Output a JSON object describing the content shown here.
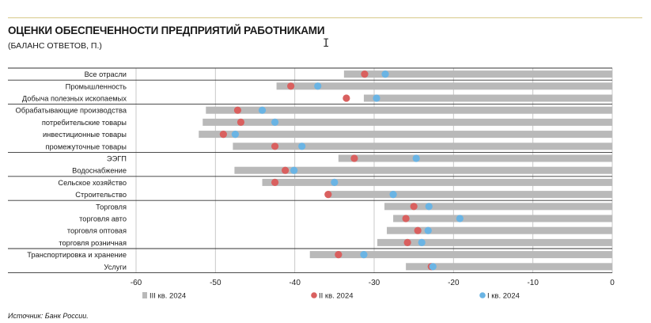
{
  "header": {
    "title": "ОЦЕНКИ ОБЕСПЕЧЕННОСТИ ПРЕДПРИЯТИЙ РАБОТНИКАМИ",
    "subtitle": "(БАЛАНС ОТВЕТОВ, П.)"
  },
  "source": "Источник: Банк России.",
  "colors": {
    "bar": "#b9b9b9",
    "q2": "#d9605f",
    "q1": "#6ab4e4",
    "grid": "#c8c8c8",
    "rule": "#333333"
  },
  "chart_data": {
    "type": "bar",
    "orientation": "horizontal",
    "categories": [
      "Все отрасли",
      "Промышленность",
      "Добыча полезных ископаемых",
      "Обрабатывающие производства",
      "потребительские товары",
      "инвестиционные товары",
      "промежуточные товары",
      "ЭЭГП",
      "Водоснабжение",
      "Сельское хозяйство",
      "Строительство",
      "Торговля",
      "торговля авто",
      "торговля оптовая",
      "торговля розничная",
      "Транспортировка и хранение",
      "Услуги"
    ],
    "groups": [
      [
        0
      ],
      [
        1,
        2
      ],
      [
        3,
        4,
        5,
        6
      ],
      [
        7,
        8
      ],
      [
        9,
        10
      ],
      [
        11,
        12,
        13,
        14
      ],
      [
        15,
        16
      ]
    ],
    "series": [
      {
        "name": "III кв. 2024",
        "marker": "bar",
        "values": [
          -33.8,
          -42.3,
          -31.3,
          -51.2,
          -51.6,
          -52.1,
          -47.8,
          -34.5,
          -47.6,
          -44.1,
          -35.8,
          -28.7,
          -27.6,
          -28.4,
          -29.6,
          -38.1,
          -26.0
        ]
      },
      {
        "name": "II кв. 2024",
        "marker": "dot",
        "values": [
          -31.2,
          -40.5,
          -33.5,
          -47.2,
          -46.8,
          -49.0,
          -42.5,
          -32.5,
          -41.2,
          -42.5,
          -35.8,
          -25.0,
          -26.0,
          -24.5,
          -25.8,
          -34.5,
          -22.8
        ]
      },
      {
        "name": "I кв. 2024",
        "marker": "dot",
        "values": [
          -28.6,
          -37.1,
          -29.7,
          -44.1,
          -42.5,
          -47.5,
          -39.1,
          -24.7,
          -40.1,
          -35.0,
          -27.6,
          -23.1,
          -19.2,
          -23.2,
          -24.0,
          -31.3,
          -22.6
        ]
      }
    ],
    "xlim": [
      -60,
      0
    ],
    "xticks": [
      "-60",
      "-50",
      "-40",
      "-30",
      "-20",
      "-10",
      "0"
    ],
    "legend_position": "bottom",
    "grid": "vertical"
  }
}
